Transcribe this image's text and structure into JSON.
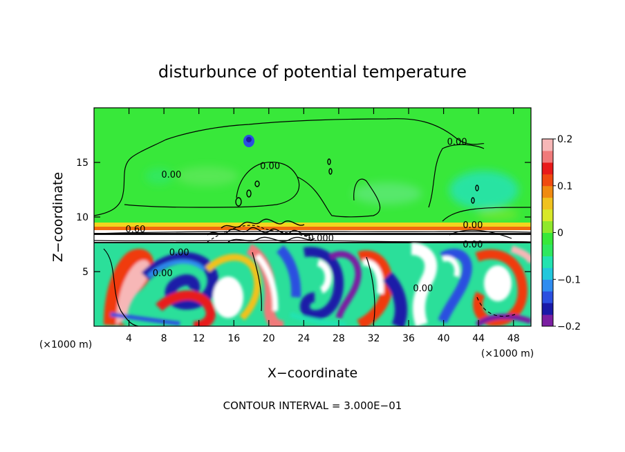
{
  "chart_data": {
    "type": "heatmap",
    "title": "disturbunce of potential temperature",
    "xlabel": "X−coordinate",
    "ylabel": "Z−coordinate",
    "x_unit_left": "(×1000 m)",
    "x_unit_right": "(×1000 m)",
    "footer": "CONTOUR INTERVAL = 3.000E−01",
    "xlim": [
      0,
      50
    ],
    "ylim": [
      0,
      20
    ],
    "xticks": [
      4,
      8,
      12,
      16,
      20,
      24,
      28,
      32,
      36,
      40,
      44,
      48
    ],
    "yticks": [
      5,
      10,
      15
    ],
    "colorbar": {
      "min": -0.2,
      "max": 0.2,
      "ticks": [
        {
          "value": 0.2,
          "label": "0.2"
        },
        {
          "value": 0.1,
          "label": "0.1"
        },
        {
          "value": 0,
          "label": "0"
        },
        {
          "value": -0.1,
          "label": "−0.1"
        },
        {
          "value": -0.2,
          "label": "−0.2"
        }
      ],
      "colors": [
        "#7b1fa2",
        "#1a1aa8",
        "#2b4fe0",
        "#2f8cf0",
        "#21c7dc",
        "#22e3b0",
        "#2ee860",
        "#37e83a",
        "#8fe82c",
        "#d8e82a",
        "#f0c21e",
        "#f08a10",
        "#f04a10",
        "#e81a1a",
        "#f07a7a",
        "#f7b7b7"
      ]
    },
    "contour_labels": [
      {
        "text": "0.00",
        "x": 40.4,
        "y": 16.6
      },
      {
        "text": "0.00",
        "x": 7.7,
        "y": 13.6
      },
      {
        "text": "0.00",
        "x": 19.0,
        "y": 14.4
      },
      {
        "text": "0.60",
        "x": 3.6,
        "y": 8.6
      },
      {
        "text": "0.00",
        "x": 8.6,
        "y": 6.5
      },
      {
        "text": "0.00",
        "x": 6.7,
        "y": 4.6
      },
      {
        "text": "0.000",
        "x": 24.5,
        "y": 7.8
      },
      {
        "text": "0.00",
        "x": 42.2,
        "y": 7.2
      },
      {
        "text": "0.00",
        "x": 36.5,
        "y": 3.2
      },
      {
        "text": "0.00",
        "x": 42.2,
        "y": 9.0
      }
    ]
  }
}
